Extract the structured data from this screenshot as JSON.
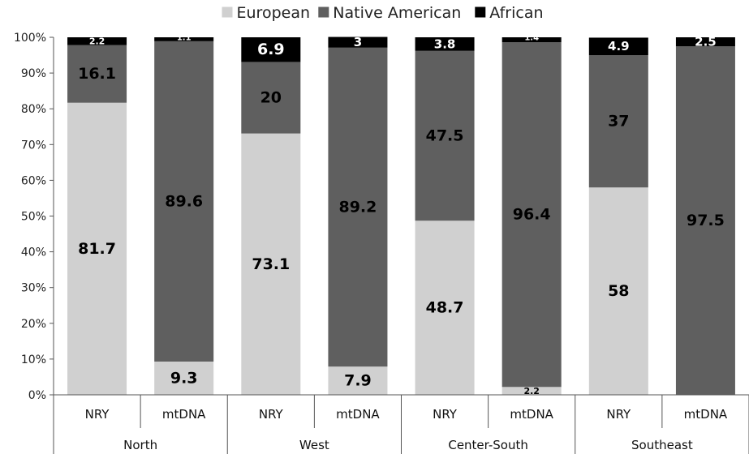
{
  "chart_data": {
    "type": "bar",
    "stacked": true,
    "percent_axis": true,
    "groups": [
      {
        "label": "North",
        "bars": [
          "NRY",
          "mtDNA"
        ]
      },
      {
        "label": "West",
        "bars": [
          "NRY",
          "mtDNA"
        ]
      },
      {
        "label": "Center-South",
        "bars": [
          "NRY",
          "mtDNA"
        ]
      },
      {
        "label": "Southeast",
        "bars": [
          "NRY",
          "mtDNA"
        ]
      }
    ],
    "categories": [
      "NRY",
      "mtDNA",
      "NRY",
      "mtDNA",
      "NRY",
      "mtDNA",
      "NRY",
      "mtDNA"
    ],
    "series": [
      {
        "name": "European",
        "color": "#d0d0d0",
        "label_color": "#000000",
        "values": [
          81.7,
          9.3,
          73.1,
          7.9,
          48.7,
          2.2,
          58,
          0
        ],
        "labels": [
          "81.7",
          "9.3",
          "73.1",
          "7.9",
          "48.7",
          "2.2",
          "58",
          ""
        ]
      },
      {
        "name": "Native American",
        "color": "#5f5f5f",
        "label_color": "#000000",
        "values": [
          16.1,
          89.6,
          20,
          89.2,
          47.5,
          96.4,
          37,
          97.5
        ],
        "labels": [
          "16.1",
          "89.6",
          "20",
          "89.2",
          "47.5",
          "96.4",
          "37",
          "97.5"
        ]
      },
      {
        "name": "African",
        "color": "#000000",
        "label_color": "#ffffff",
        "values": [
          2.2,
          1.1,
          6.9,
          3,
          3.8,
          1.4,
          4.9,
          2.5
        ],
        "labels": [
          "2.2",
          "1.1",
          "6.9",
          "3",
          "3.8",
          "1.4",
          "4.9",
          "2.5"
        ]
      }
    ],
    "y_ticks": [
      "0%",
      "10%",
      "20%",
      "30%",
      "40%",
      "50%",
      "60%",
      "70%",
      "80%",
      "90%",
      "100%"
    ],
    "ylim": [
      0,
      100
    ],
    "legend": "top-center",
    "grid": false
  }
}
